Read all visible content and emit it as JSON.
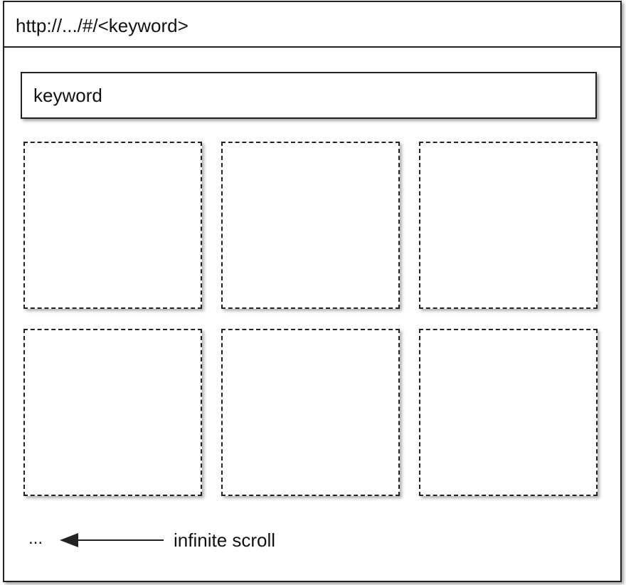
{
  "browser": {
    "url": "http://.../#/<keyword>"
  },
  "search": {
    "value": "keyword"
  },
  "results": {
    "tile_count": 6
  },
  "footer": {
    "ellipsis": "...",
    "arrow_icon": "left-arrow-icon",
    "label": "infinite scroll"
  }
}
